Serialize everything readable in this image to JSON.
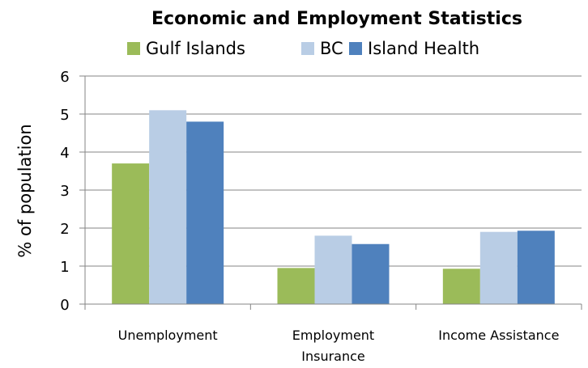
{
  "chart_data": {
    "type": "bar",
    "title": "Economic and Employment Statistics",
    "ylabel": "% of population",
    "xlabel": "",
    "ylim": [
      0,
      6
    ],
    "yticks": [
      0,
      1,
      2,
      3,
      4,
      5,
      6
    ],
    "grid": true,
    "legend_position": "top",
    "categories": [
      [
        "Unemployment"
      ],
      [
        "Employment",
        "Insurance"
      ],
      [
        "Income Assistance"
      ]
    ],
    "series": [
      {
        "name": "Gulf Islands",
        "color": "#9bbb59",
        "values": [
          3.7,
          0.95,
          0.93
        ]
      },
      {
        "name": "BC",
        "color": "#b9cde5",
        "values": [
          5.1,
          1.8,
          1.9
        ]
      },
      {
        "name": "Island Health",
        "color": "#4f81bd",
        "values": [
          4.8,
          1.58,
          1.93
        ]
      }
    ]
  }
}
